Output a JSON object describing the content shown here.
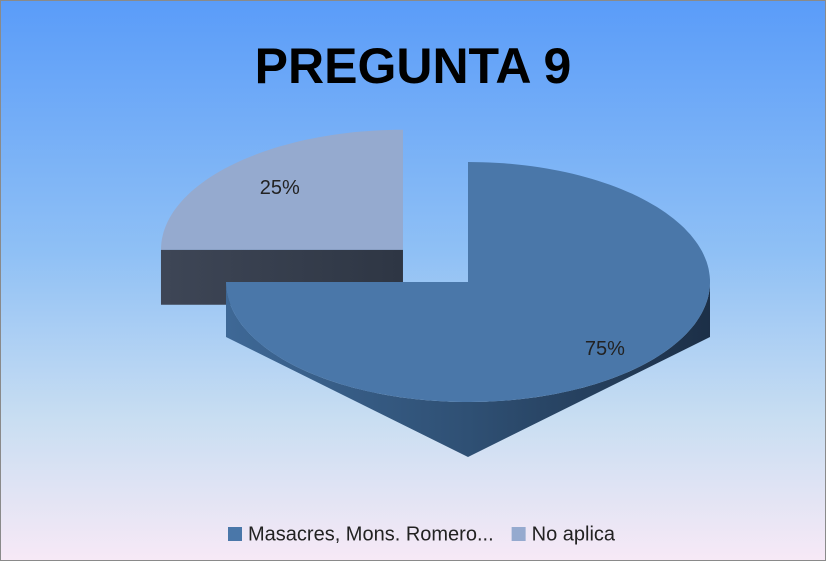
{
  "chart_data": {
    "type": "pie",
    "title": "PREGUNTA 9",
    "categories": [
      "Masacres, Mons. Romero...",
      "No aplica"
    ],
    "values": [
      75,
      25
    ],
    "value_labels": [
      "75%",
      "25%"
    ],
    "colors": [
      "#4a77a9",
      "#95aacf"
    ],
    "exploded": [
      false,
      true
    ],
    "legend": "bottom"
  }
}
